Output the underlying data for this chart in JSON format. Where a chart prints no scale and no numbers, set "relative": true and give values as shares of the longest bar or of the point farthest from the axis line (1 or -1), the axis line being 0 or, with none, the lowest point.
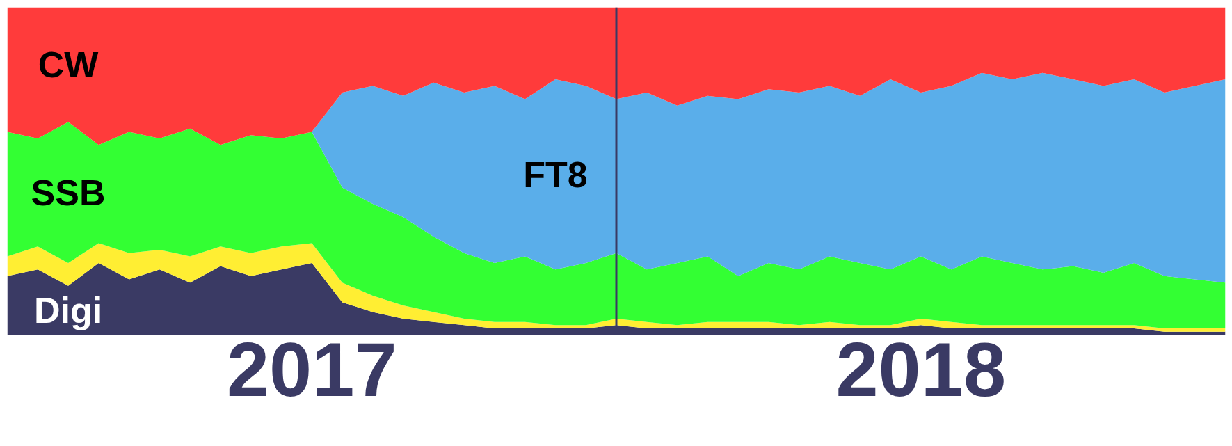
{
  "chart_data": {
    "type": "area",
    "stacked": true,
    "relative": true,
    "grid": false,
    "x": [
      2017.0,
      2017.05,
      2017.1,
      2017.15,
      2017.2,
      2017.25,
      2017.3,
      2017.35,
      2017.4,
      2017.45,
      2017.5,
      2017.55,
      2017.6,
      2017.65,
      2017.7,
      2017.75,
      2017.8,
      2017.85,
      2017.9,
      2017.95,
      2018.0,
      2018.05,
      2018.1,
      2018.15,
      2018.2,
      2018.25,
      2018.3,
      2018.35,
      2018.4,
      2018.45,
      2018.5,
      2018.55,
      2018.6,
      2018.65,
      2018.7,
      2018.75,
      2018.8,
      2018.85,
      2018.9,
      2018.95,
      2019.0
    ],
    "xlim": [
      2017.0,
      2019.0
    ],
    "xticks": [
      {
        "value": 2017.5,
        "label": "2017"
      },
      {
        "value": 2018.5,
        "label": "2018"
      }
    ],
    "ref_lines": [
      {
        "axis": "x",
        "value": 2018.0,
        "color": "#3a3a64"
      }
    ],
    "series": [
      {
        "name": "Digi",
        "color": "#3a3a64",
        "values": [
          0.18,
          0.2,
          0.15,
          0.22,
          0.17,
          0.2,
          0.16,
          0.21,
          0.18,
          0.2,
          0.22,
          0.1,
          0.07,
          0.05,
          0.04,
          0.03,
          0.02,
          0.02,
          0.02,
          0.02,
          0.03,
          0.02,
          0.02,
          0.02,
          0.02,
          0.02,
          0.02,
          0.02,
          0.02,
          0.02,
          0.03,
          0.02,
          0.02,
          0.02,
          0.02,
          0.02,
          0.02,
          0.02,
          0.01,
          0.01,
          0.01
        ]
      },
      {
        "color": "#ffee33",
        "values": [
          0.06,
          0.07,
          0.07,
          0.06,
          0.08,
          0.06,
          0.08,
          0.06,
          0.07,
          0.07,
          0.06,
          0.06,
          0.05,
          0.04,
          0.03,
          0.02,
          0.02,
          0.02,
          0.01,
          0.01,
          0.02,
          0.02,
          0.01,
          0.02,
          0.02,
          0.02,
          0.01,
          0.02,
          0.01,
          0.01,
          0.02,
          0.02,
          0.01,
          0.01,
          0.01,
          0.01,
          0.01,
          0.01,
          0.01,
          0.01,
          0.01
        ]
      },
      {
        "name": "SSB",
        "color": "#33ff33",
        "values": [
          0.38,
          0.33,
          0.43,
          0.3,
          0.37,
          0.34,
          0.39,
          0.31,
          0.36,
          0.33,
          0.34,
          0.29,
          0.28,
          0.27,
          0.23,
          0.2,
          0.18,
          0.2,
          0.17,
          0.19,
          0.2,
          0.16,
          0.19,
          0.2,
          0.14,
          0.18,
          0.17,
          0.2,
          0.19,
          0.17,
          0.19,
          0.16,
          0.21,
          0.19,
          0.17,
          0.18,
          0.16,
          0.19,
          0.16,
          0.15,
          0.14
        ]
      },
      {
        "name": "FT8",
        "color": "#5aaeea",
        "values": [
          0,
          0,
          0,
          0,
          0,
          0,
          0,
          0,
          0,
          0,
          0,
          0.29,
          0.36,
          0.37,
          0.47,
          0.49,
          0.54,
          0.48,
          0.58,
          0.54,
          0.47,
          0.54,
          0.48,
          0.49,
          0.54,
          0.53,
          0.54,
          0.52,
          0.51,
          0.58,
          0.5,
          0.56,
          0.56,
          0.56,
          0.6,
          0.57,
          0.57,
          0.56,
          0.56,
          0.59,
          0.62
        ]
      },
      {
        "name": "CW",
        "color": "#ff3b3b",
        "values": [
          0.38,
          0.4,
          0.35,
          0.42,
          0.38,
          0.4,
          0.37,
          0.42,
          0.39,
          0.4,
          0.38,
          0.26,
          0.24,
          0.27,
          0.23,
          0.26,
          0.24,
          0.28,
          0.22,
          0.24,
          0.28,
          0.26,
          0.3,
          0.27,
          0.28,
          0.25,
          0.26,
          0.24,
          0.27,
          0.22,
          0.26,
          0.24,
          0.2,
          0.22,
          0.2,
          0.22,
          0.24,
          0.22,
          0.26,
          0.24,
          0.22
        ]
      }
    ]
  }
}
